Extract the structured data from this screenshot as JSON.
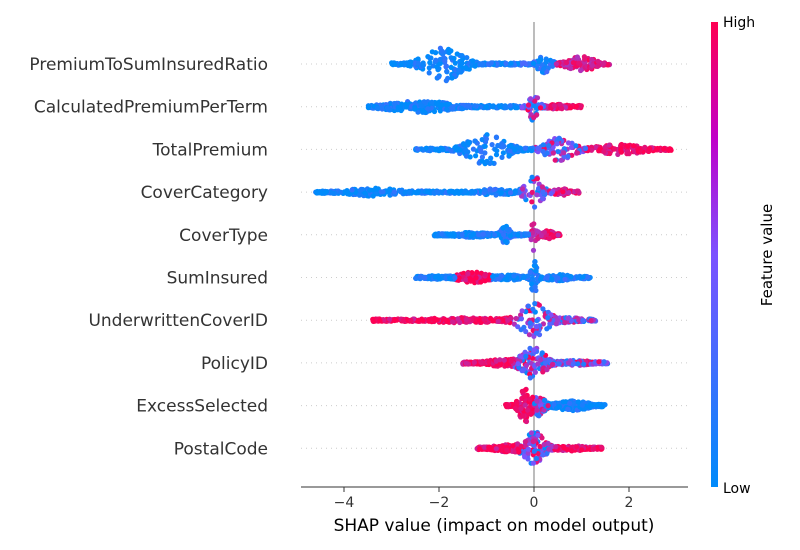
{
  "chart_data": {
    "type": "scatter",
    "subtype": "shap-beeswarm",
    "xlabel": "SHAP value (impact on model output)",
    "xlim": [
      -5,
      3.3
    ],
    "xticks": [
      {
        "value": -4,
        "label": "−4"
      },
      {
        "value": -2,
        "label": "−2"
      },
      {
        "value": 0,
        "label": "0"
      },
      {
        "value": 2,
        "label": "2"
      }
    ],
    "colorbar": {
      "title": "Feature value",
      "high_label": "High",
      "low_label": "Low",
      "low_color": "#008bfb",
      "high_color": "#ff0052"
    },
    "features": [
      {
        "name": "PremiumToSumInsuredRatio",
        "min": -3.0,
        "max": 1.6,
        "clusters": [
          {
            "center": -1.9,
            "spread": 0.35,
            "height": 1.0,
            "min": -3.0,
            "max": -0.3,
            "value": 0.05
          },
          {
            "center": 0.2,
            "spread": 0.12,
            "height": 0.6,
            "min": -0.3,
            "max": 0.45,
            "value": 0.15
          },
          {
            "center": 1.0,
            "spread": 0.25,
            "height": 0.45,
            "min": 0.45,
            "max": 1.6,
            "value": 0.85
          }
        ]
      },
      {
        "name": "CalculatedPremiumPerTerm",
        "min": -3.5,
        "max": 1.0,
        "clusters": [
          {
            "center": -2.4,
            "spread": 0.6,
            "height": 0.35,
            "min": -3.5,
            "max": -0.3,
            "value": 0.05
          },
          {
            "center": 0.0,
            "spread": 0.08,
            "height": 0.9,
            "min": -0.3,
            "max": 0.3,
            "value": 0.5
          },
          {
            "center": 0.5,
            "spread": 0.2,
            "height": 0.15,
            "min": 0.3,
            "max": 1.0,
            "value": 0.9
          }
        ]
      },
      {
        "name": "TotalPremium",
        "min": -2.5,
        "max": 2.9,
        "clusters": [
          {
            "center": -1.0,
            "spread": 0.35,
            "height": 1.0,
            "min": -2.5,
            "max": 0.0,
            "value": 0.05
          },
          {
            "center": 0.5,
            "spread": 0.25,
            "height": 0.7,
            "min": 0.0,
            "max": 1.1,
            "value": 0.4
          },
          {
            "center": 1.8,
            "spread": 0.45,
            "height": 0.3,
            "min": 1.1,
            "max": 2.9,
            "value": 0.95
          }
        ]
      },
      {
        "name": "CoverCategory",
        "min": -4.6,
        "max": 0.95,
        "clusters": [
          {
            "center": -3.4,
            "spread": 0.5,
            "height": 0.25,
            "min": -4.6,
            "max": -2.1,
            "value": 0.05
          },
          {
            "center": -0.8,
            "spread": 0.3,
            "height": 0.2,
            "min": -1.35,
            "max": -0.3,
            "value": 0.1
          },
          {
            "center": 0.0,
            "spread": 0.15,
            "height": 0.95,
            "min": -0.3,
            "max": 0.4,
            "value": 0.6
          },
          {
            "center": 0.6,
            "spread": 0.15,
            "height": 0.2,
            "min": 0.4,
            "max": 0.95,
            "value": 0.9
          }
        ]
      },
      {
        "name": "CoverType",
        "min": -2.1,
        "max": 0.55,
        "clusters": [
          {
            "center": -1.3,
            "spread": 0.35,
            "height": 0.15,
            "min": -2.1,
            "max": -0.75,
            "value": 0.05
          },
          {
            "center": -0.6,
            "spread": 0.08,
            "height": 0.5,
            "min": -0.75,
            "max": -0.35,
            "value": 0.1
          },
          {
            "center": 0.0,
            "spread": 0.05,
            "height": 0.95,
            "min": -0.1,
            "max": 0.1,
            "value": 0.8
          },
          {
            "center": 0.3,
            "spread": 0.1,
            "height": 0.25,
            "min": 0.1,
            "max": 0.55,
            "value": 0.9
          }
        ]
      },
      {
        "name": "SumInsured",
        "min": -2.5,
        "max": 1.2,
        "clusters": [
          {
            "center": -2.1,
            "spread": 0.2,
            "height": 0.12,
            "min": -2.5,
            "max": -1.65,
            "value": 0.05
          },
          {
            "center": -1.3,
            "spread": 0.25,
            "height": 0.35,
            "min": -1.65,
            "max": -0.9,
            "value": 0.95
          },
          {
            "center": -0.5,
            "spread": 0.25,
            "height": 0.15,
            "min": -0.9,
            "max": -0.05,
            "value": 0.05
          },
          {
            "center": 0.0,
            "spread": 0.05,
            "height": 1.0,
            "min": -0.1,
            "max": 0.1,
            "value": 0.1
          },
          {
            "center": 0.5,
            "spread": 0.25,
            "height": 0.2,
            "min": 0.1,
            "max": 1.2,
            "value": 0.1
          }
        ]
      },
      {
        "name": "UnderwrittenCoverID",
        "min": -3.4,
        "max": 1.3,
        "clusters": [
          {
            "center": -1.5,
            "spread": 0.7,
            "height": 0.15,
            "min": -3.4,
            "max": -0.5,
            "value": 0.95
          },
          {
            "center": 0.0,
            "spread": 0.25,
            "height": 1.0,
            "min": -0.5,
            "max": 0.6,
            "value": 0.5
          },
          {
            "center": 0.8,
            "spread": 0.2,
            "height": 0.15,
            "min": 0.6,
            "max": 1.3,
            "value": 0.6
          }
        ]
      },
      {
        "name": "PolicyID",
        "min": -1.5,
        "max": 1.55,
        "clusters": [
          {
            "center": -0.7,
            "spread": 0.3,
            "height": 0.2,
            "min": -1.5,
            "max": -0.4,
            "value": 0.95
          },
          {
            "center": 0.0,
            "spread": 0.2,
            "height": 1.0,
            "min": -0.4,
            "max": 0.5,
            "value": 0.45
          },
          {
            "center": 0.9,
            "spread": 0.3,
            "height": 0.15,
            "min": 0.5,
            "max": 1.55,
            "value": 0.3
          }
        ]
      },
      {
        "name": "ExcessSelected",
        "min": -0.6,
        "max": 1.5,
        "clusters": [
          {
            "center": -0.2,
            "spread": 0.1,
            "height": 1.0,
            "min": -0.6,
            "max": 0.0,
            "value": 0.95
          },
          {
            "center": 0.1,
            "spread": 0.1,
            "height": 0.6,
            "min": 0.0,
            "max": 0.3,
            "value": 0.4
          },
          {
            "center": 0.8,
            "spread": 0.3,
            "height": 0.3,
            "min": 0.3,
            "max": 1.5,
            "value": 0.05
          }
        ]
      },
      {
        "name": "PostalCode",
        "min": -1.2,
        "max": 1.45,
        "clusters": [
          {
            "center": -0.6,
            "spread": 0.25,
            "height": 0.2,
            "min": -1.2,
            "max": -0.3,
            "value": 0.95
          },
          {
            "center": 0.0,
            "spread": 0.18,
            "height": 1.0,
            "min": -0.3,
            "max": 0.4,
            "value": 0.45
          },
          {
            "center": 0.8,
            "spread": 0.3,
            "height": 0.15,
            "min": 0.4,
            "max": 1.45,
            "value": 0.9
          }
        ]
      }
    ]
  }
}
